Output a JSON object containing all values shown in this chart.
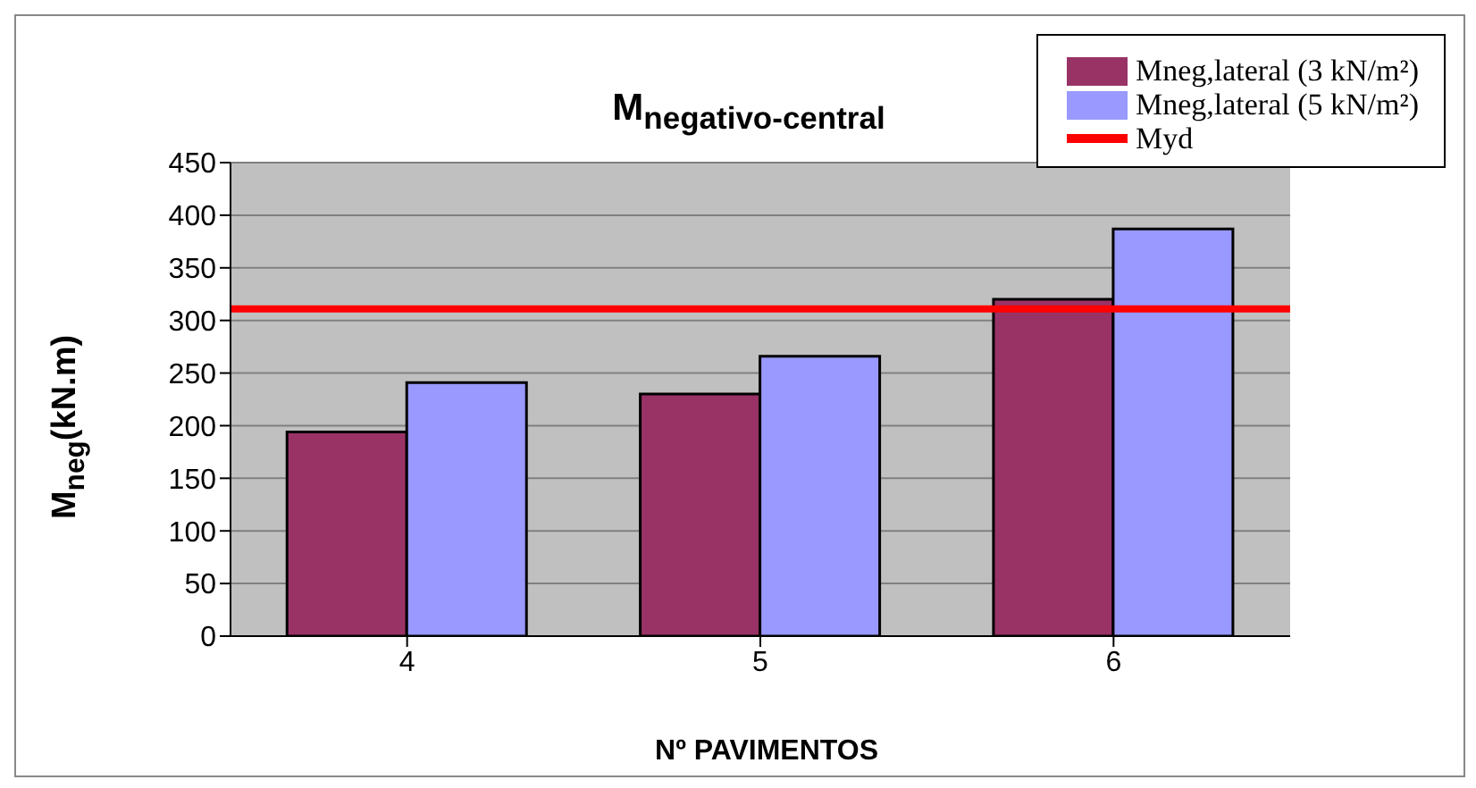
{
  "chart_data": {
    "type": "bar",
    "title": "M$_{negativo-central}$",
    "xlabel": "Nº PAVIMENTOS",
    "ylabel": "M$_{neg}$(kN.m)",
    "categories": [
      "4",
      "5",
      "6"
    ],
    "series": [
      {
        "name": "Mneg,lateral (3 kN/m²)",
        "color": "#993366",
        "values": [
          194,
          230,
          320
        ]
      },
      {
        "name": "Mneg,lateral (5 kN/m²)",
        "color": "#9999ff",
        "values": [
          241,
          266,
          387
        ]
      }
    ],
    "ref_lines": [
      {
        "axis": "y",
        "value": 311,
        "label": "Myd",
        "color": "#ff0000"
      }
    ],
    "ylim": [
      0,
      450
    ],
    "yticks": [
      0,
      50,
      100,
      150,
      200,
      250,
      300,
      350,
      400,
      450
    ],
    "grid": "y",
    "legend": "top right"
  }
}
